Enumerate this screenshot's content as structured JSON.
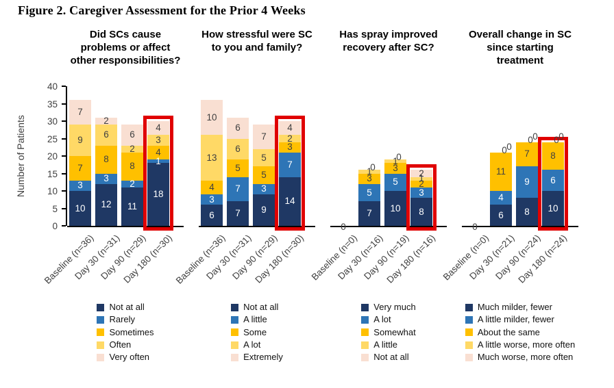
{
  "figure_title": "Figure 2. Caregiver Assessment for the Prior 4 Weeks",
  "y_axis": {
    "label": "Number of Patients",
    "ticks": [
      0,
      5,
      10,
      15,
      20,
      25,
      30,
      35,
      40
    ]
  },
  "colors": {
    "series": [
      "#1F3864",
      "#2E75B6",
      "#FFC000",
      "#FFD966",
      "#F9DFD2"
    ],
    "highlight_box": "#E00000",
    "label_on_dark": "#FFFFFF",
    "label_on_light": "#404040",
    "axis_text": "#404040"
  },
  "chart_data": {
    "type": "bar",
    "stacked": true,
    "title": "Figure 2. Caregiver Assessment for the Prior 4 Weeks",
    "xlabel": "",
    "ylabel": "Number of Patients",
    "ylim": [
      0,
      40
    ],
    "grid": false,
    "legend_position": "bottom",
    "panels": [
      {
        "title": "Did SCs cause problems or affect other responsibilities?",
        "categories": [
          "Baseline (n=36)",
          "Day 30 (n=31)",
          "Day 90 (n=29)",
          "Day 180 (n=30)"
        ],
        "series": [
          {
            "name": "Not at all",
            "values": [
              10,
              12,
              11,
              18
            ]
          },
          {
            "name": "Rarely",
            "values": [
              3,
              3,
              2,
              1
            ]
          },
          {
            "name": "Sometimes",
            "values": [
              7,
              8,
              8,
              4
            ]
          },
          {
            "name": "Often",
            "values": [
              9,
              6,
              2,
              3
            ]
          },
          {
            "name": "Very often",
            "values": [
              7,
              2,
              6,
              4
            ]
          }
        ],
        "highlight_index": 3
      },
      {
        "title": "How stressful were SC to you and family?",
        "categories": [
          "Baseline (n=36)",
          "Day 30 (n=31)",
          "Day 90 (n=29)",
          "Day 180 (n=30)"
        ],
        "series": [
          {
            "name": "Not at all",
            "values": [
              6,
              7,
              9,
              14
            ]
          },
          {
            "name": "A little",
            "values": [
              3,
              7,
              3,
              7
            ]
          },
          {
            "name": "Some",
            "values": [
              4,
              5,
              5,
              3
            ]
          },
          {
            "name": "A lot",
            "values": [
              13,
              6,
              5,
              2
            ]
          },
          {
            "name": "Extremely",
            "values": [
              10,
              6,
              7,
              4
            ]
          }
        ],
        "highlight_index": 3
      },
      {
        "title": "Has spray improved recovery after SC?",
        "categories": [
          "Baseline (n=0)",
          "Day 30 (n=16)",
          "Day 90 (n=19)",
          "Day 180 (n=16)"
        ],
        "series": [
          {
            "name": "Very much",
            "values": [
              0,
              7,
              10,
              8
            ]
          },
          {
            "name": "A lot",
            "values": [
              0,
              5,
              5,
              3
            ]
          },
          {
            "name": "Somewhat",
            "values": [
              0,
              3,
              3,
              2
            ]
          },
          {
            "name": "A little",
            "values": [
              0,
              1,
              1,
              1
            ]
          },
          {
            "name": "Not at all",
            "values": [
              0,
              0,
              0,
              2
            ]
          }
        ],
        "highlight_index": 3
      },
      {
        "title": "Overall change in SC since starting treatment",
        "categories": [
          "Baseline (n=0)",
          "Day 30 (n=21)",
          "Day 90 (n=24)",
          "Day 180 (n=24)"
        ],
        "series": [
          {
            "name": "Much milder, fewer",
            "values": [
              0,
              6,
              8,
              10
            ]
          },
          {
            "name": "A little milder, fewer",
            "values": [
              0,
              4,
              9,
              6
            ]
          },
          {
            "name": "About the same",
            "values": [
              0,
              11,
              7,
              8
            ]
          },
          {
            "name": "A little worse, more often",
            "values": [
              0,
              0,
              0,
              0
            ]
          },
          {
            "name": "Much worse, more often",
            "values": [
              0,
              0,
              0,
              0
            ]
          }
        ],
        "highlight_index": 3
      }
    ]
  }
}
